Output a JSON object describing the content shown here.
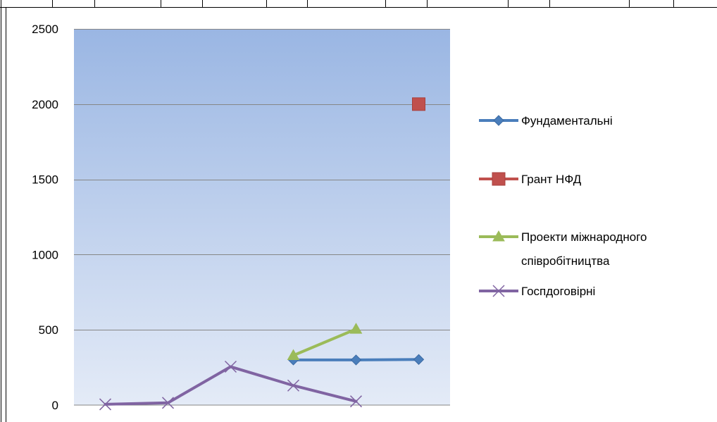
{
  "chart_data": {
    "type": "line",
    "title": "",
    "xlabel": "",
    "ylabel": "",
    "ylim": [
      0,
      2500
    ],
    "yticks": [
      0,
      500,
      1000,
      1500,
      2000,
      2500
    ],
    "grid": true,
    "legend_position": "right",
    "x_count": 6,
    "series": [
      {
        "name": "Фундаментальні",
        "color": "#4a7ebb",
        "marker": "diamond",
        "values": [
          null,
          null,
          null,
          300,
          300,
          303
        ]
      },
      {
        "name": "Грант НФД",
        "color": "#c0504d",
        "marker": "square",
        "values": [
          null,
          null,
          null,
          null,
          null,
          2000
        ]
      },
      {
        "name": "Проекти міжнародного співробітництва",
        "color": "#9bbb59",
        "marker": "triangle",
        "values": [
          null,
          null,
          null,
          330,
          505,
          null
        ]
      },
      {
        "name": "Госпдоговірні",
        "color": "#8064a2",
        "marker": "x",
        "values": [
          5,
          15,
          255,
          130,
          25,
          null
        ]
      }
    ]
  },
  "legend": {
    "items": [
      {
        "lines": [
          "Фундаментальні"
        ]
      },
      {
        "lines": [
          "Грант НФД"
        ]
      },
      {
        "lines": [
          "Проекти міжнародного",
          "співробітництва"
        ]
      },
      {
        "lines": [
          "Госпдоговірні"
        ]
      }
    ]
  }
}
